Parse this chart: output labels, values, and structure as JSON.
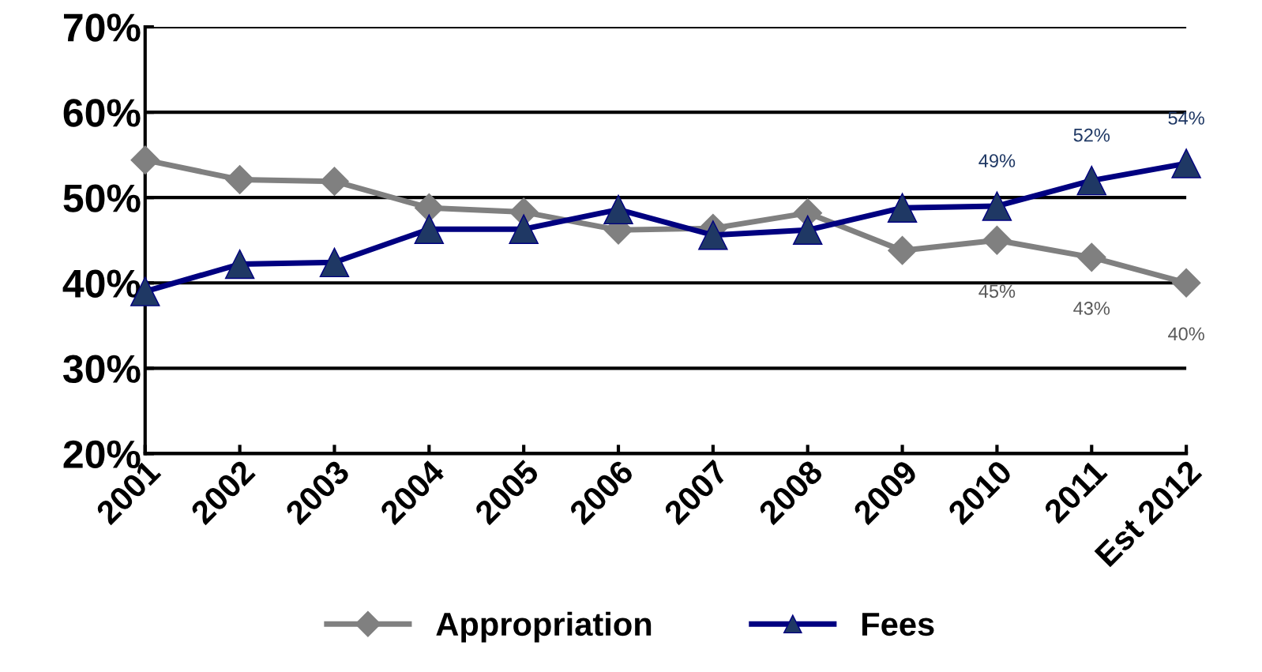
{
  "chart_data": {
    "type": "line",
    "categories": [
      "2001",
      "2002",
      "2003",
      "2004",
      "2005",
      "2006",
      "2007",
      "2008",
      "2009",
      "2010",
      "2011",
      "Est 2012"
    ],
    "series": [
      {
        "name": "Appropriation",
        "color": "#808080",
        "marker": "diamond",
        "values": [
          54.4,
          52.1,
          51.9,
          48.8,
          48.3,
          46.2,
          46.4,
          48.2,
          43.8,
          45,
          43,
          40
        ],
        "value_labels": [
          null,
          null,
          null,
          null,
          null,
          null,
          null,
          null,
          null,
          "45%",
          "43%",
          "40%"
        ]
      },
      {
        "name": "Fees",
        "color": "#000080",
        "marker": "triangle",
        "values": [
          39.0,
          42.2,
          42.4,
          46.3,
          46.3,
          48.6,
          45.6,
          46.2,
          48.8,
          49,
          52,
          54
        ],
        "value_labels": [
          null,
          null,
          null,
          null,
          null,
          null,
          null,
          null,
          null,
          "49%",
          "52%",
          "54%"
        ]
      }
    ],
    "ylim": [
      20,
      70
    ],
    "yticks": [
      {
        "value": 20,
        "label": "20%"
      },
      {
        "value": 30,
        "label": "30%"
      },
      {
        "value": 40,
        "label": "40%"
      },
      {
        "value": 50,
        "label": "50%"
      },
      {
        "value": 60,
        "label": "60%"
      },
      {
        "value": 70,
        "label": "70%"
      }
    ],
    "grid": "y",
    "legend": "bottom",
    "line_style": "solid"
  }
}
